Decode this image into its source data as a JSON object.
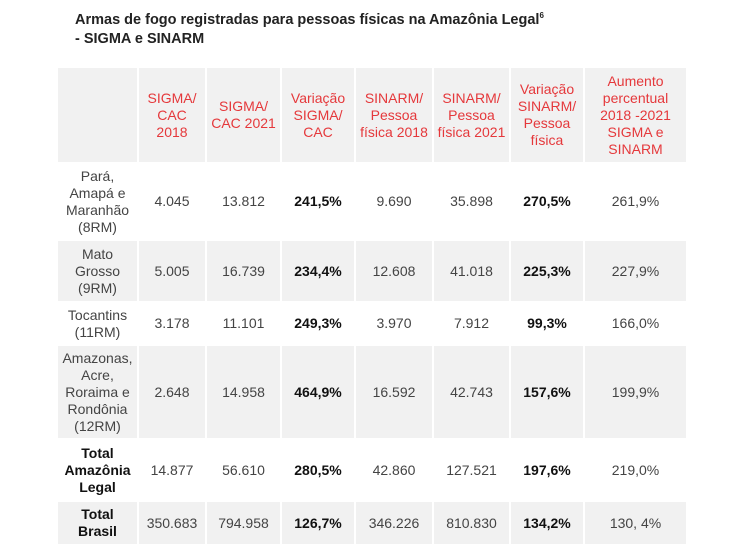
{
  "title": {
    "line1": "Armas de fogo registradas para pessoas físicas na Amazônia Legal",
    "footnote": "6",
    "line2": "- SIGMA e SINARM"
  },
  "table": {
    "headers": [
      "",
      "SIGMA/ CAC 2018",
      "SIGMA/ CAC 2021",
      "Variação SIGMA/ CAC",
      "SINARM/ Pessoa física 2018",
      "SINARM/ Pessoa física 2021",
      "Variação SINARM/ Pessoa física",
      "Aumento percentual 2018 -2021 SIGMA e SINARM"
    ],
    "rows": [
      [
        "Pará, Amapá e Maranhão (8RM)",
        "4.045",
        "13.812",
        "241,5%",
        "9.690",
        "35.898",
        "270,5%",
        "261,9%"
      ],
      [
        "Mato Grosso (9RM)",
        "5.005",
        "16.739",
        "234,4%",
        "12.608",
        "41.018",
        "225,3%",
        "227,9%"
      ],
      [
        "Tocantins (11RM)",
        "3.178",
        "11.101",
        "249,3%",
        "3.970",
        "7.912",
        "99,3%",
        "166,0%"
      ],
      [
        "Amazonas, Acre, Roraima e Rondônia (12RM)",
        "2.648",
        "14.958",
        "464,9%",
        "16.592",
        "42.743",
        "157,6%",
        "199,9%"
      ],
      [
        "Total Amazônia Legal",
        "14.877",
        "56.610",
        "280,5%",
        "42.860",
        "127.521",
        "197,6%",
        "219,0%"
      ],
      [
        "Total Brasil",
        "350.683",
        "794.958",
        "126,7%",
        "346.226",
        "810.830",
        "134,2%",
        "130, 4%"
      ]
    ]
  },
  "colors": {
    "header_text": "#e5383b",
    "row_alt_bg": "#f1f1f1"
  }
}
